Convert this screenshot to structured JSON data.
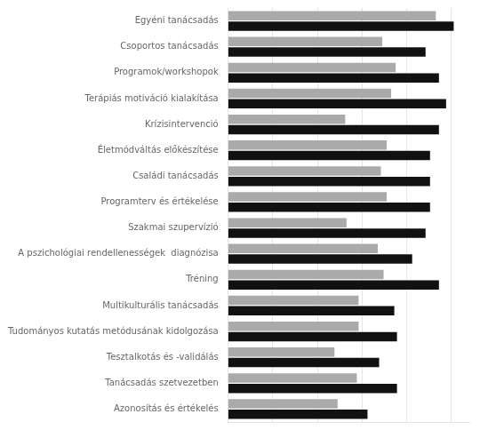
{
  "chart_data": {
    "type": "bar",
    "orientation": "horizontal",
    "categories": [
      "Egyéni tanácsadás",
      "Csoportos tanácsadás",
      "Programok/workshopok",
      "Terápiás motiváció kialakítása",
      "Krízisintervenció",
      "Életmódváltás előkészítése",
      "Családi tanácsadás",
      "Programterv és értékelése",
      "Szakmai szupervízió",
      "A pszichológiai rendellenességek  diagnózisa",
      "Tréning",
      "Multikulturális tanácsadás",
      "Tudományos kutatás metódusának kidolgozása",
      "Tesztalkotás és -validálás",
      "Tanácsadás szetvezetben",
      "Azonosítás és értékelés"
    ],
    "series": [
      {
        "color": "#aaaaaa",
        "values": [
          4.65,
          3.45,
          3.75,
          3.65,
          2.62,
          3.55,
          3.42,
          3.55,
          2.65,
          3.35,
          3.48,
          2.92,
          2.92,
          2.38,
          2.88,
          2.45
        ]
      },
      {
        "color": "#111111",
        "values": [
          5.05,
          4.42,
          4.72,
          4.88,
          4.72,
          4.52,
          4.52,
          4.52,
          4.42,
          4.12,
          4.72,
          3.72,
          3.78,
          3.38,
          3.78,
          3.12
        ]
      }
    ],
    "xlim": [
      0,
      5.4
    ],
    "xticks": [
      1,
      2,
      3,
      4,
      5
    ],
    "grid": true,
    "tick_labels": "y"
  }
}
